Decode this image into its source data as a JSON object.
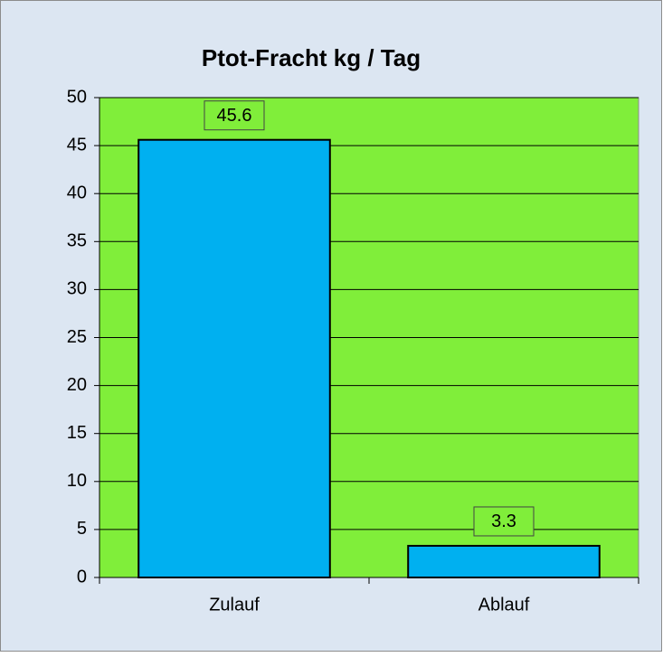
{
  "chart_data": {
    "type": "bar",
    "title": "Ptot-Fracht kg / Tag",
    "categories": [
      "Zulauf",
      "Ablauf"
    ],
    "values": [
      45.6,
      3.3
    ],
    "color": "#00b0f0",
    "ylim": [
      0,
      50
    ],
    "yticks": [
      0,
      5,
      10,
      15,
      20,
      25,
      30,
      35,
      40,
      45,
      50
    ],
    "grid": true,
    "plot_background": "#80ee3a"
  }
}
